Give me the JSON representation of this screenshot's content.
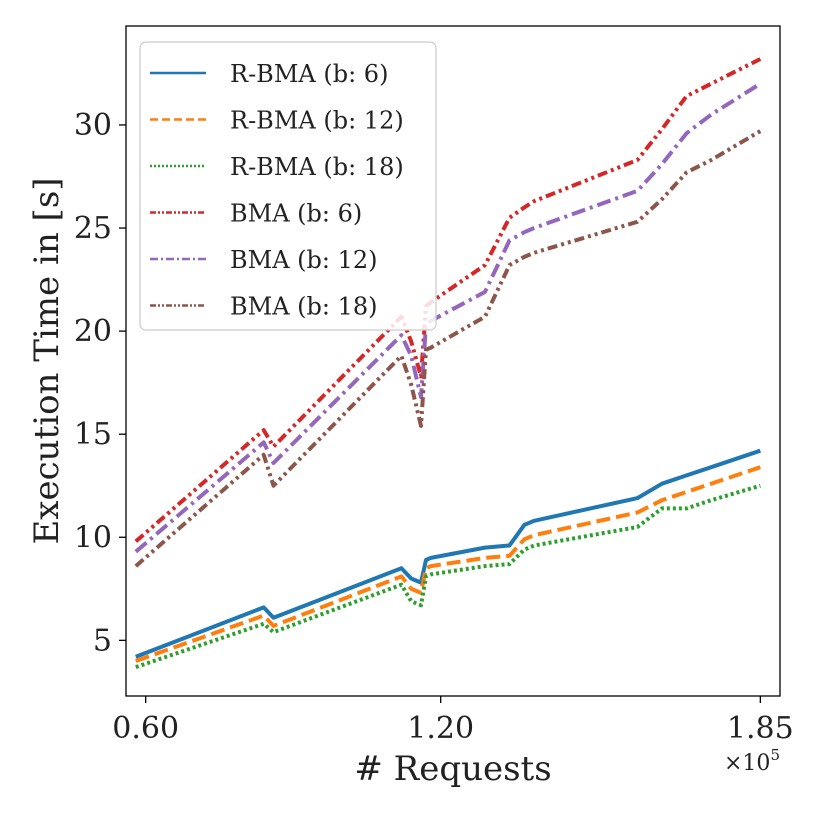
{
  "chart_data": {
    "type": "line",
    "title": "",
    "xlabel": "# Requests",
    "ylabel": "Execution Time in [s]",
    "x_multiplier_label": "×10",
    "x_multiplier_exp": "5",
    "xlim": [
      0.56,
      1.89
    ],
    "ylim": [
      2.3,
      34.8
    ],
    "xticks": [
      {
        "value": 0.6,
        "label": "0.60"
      },
      {
        "value": 1.2,
        "label": "1.20"
      },
      {
        "value": 1.85,
        "label": "1.85"
      }
    ],
    "yticks": [
      {
        "value": 5,
        "label": "5"
      },
      {
        "value": 10,
        "label": "10"
      },
      {
        "value": 15,
        "label": "15"
      },
      {
        "value": 20,
        "label": "20"
      },
      {
        "value": 25,
        "label": "25"
      },
      {
        "value": 30,
        "label": "30"
      }
    ],
    "legend_position": "top-left",
    "x": [
      0.58,
      0.84,
      0.86,
      1.12,
      1.14,
      1.16,
      1.17,
      1.18,
      1.29,
      1.34,
      1.37,
      1.39,
      1.6,
      1.65,
      1.7,
      1.75,
      1.85
    ],
    "series": [
      {
        "name": "R-BMA (b: 6)",
        "color": "#1f77b4",
        "dash": "solid",
        "values": [
          4.2,
          6.6,
          6.1,
          8.5,
          8.0,
          7.8,
          8.9,
          9.0,
          9.5,
          9.6,
          10.6,
          10.8,
          11.9,
          12.6,
          13.0,
          13.4,
          14.2
        ]
      },
      {
        "name": "R-BMA (b: 12)",
        "color": "#ff7f0e",
        "dash": "dashed",
        "values": [
          4.0,
          6.2,
          5.7,
          8.1,
          7.5,
          7.3,
          8.5,
          8.6,
          9.0,
          9.1,
          9.9,
          10.1,
          11.2,
          11.8,
          12.2,
          12.6,
          13.4
        ]
      },
      {
        "name": "R-BMA (b: 18)",
        "color": "#2ca02c",
        "dash": "dotted",
        "values": [
          3.7,
          5.8,
          5.4,
          7.7,
          6.9,
          6.7,
          8.1,
          8.2,
          8.6,
          8.7,
          9.4,
          9.6,
          10.5,
          11.4,
          11.4,
          11.8,
          12.5
        ]
      },
      {
        "name": "BMA (b: 6)",
        "color": "#d62728",
        "dash": "dashdotdot",
        "values": [
          9.8,
          15.2,
          14.4,
          20.7,
          19.5,
          17.8,
          21.2,
          21.4,
          23.2,
          25.5,
          26.0,
          26.3,
          28.3,
          29.8,
          31.4,
          32.0,
          33.2
        ]
      },
      {
        "name": "BMA (b: 12)",
        "color": "#9467bd",
        "dash": "dashdot",
        "values": [
          9.3,
          14.6,
          13.6,
          19.8,
          18.8,
          16.8,
          20.3,
          20.5,
          21.9,
          24.4,
          24.8,
          25.0,
          26.8,
          28.1,
          29.6,
          30.5,
          32.0
        ]
      },
      {
        "name": "BMA (b: 18)",
        "color": "#8c564b",
        "dash": "dashdotdot",
        "values": [
          8.6,
          14.0,
          12.5,
          18.8,
          17.4,
          15.4,
          19.1,
          19.2,
          20.7,
          23.2,
          23.6,
          23.8,
          25.3,
          26.4,
          27.7,
          28.3,
          29.7
        ]
      }
    ]
  }
}
